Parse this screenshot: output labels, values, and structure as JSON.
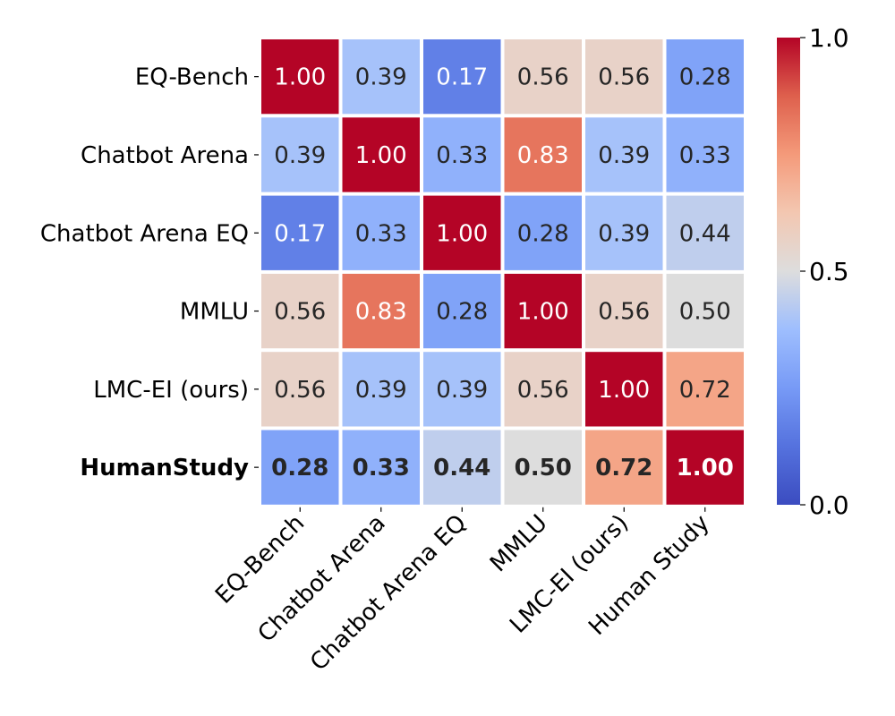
{
  "chart_data": {
    "type": "heatmap",
    "title": "",
    "xlabel": "",
    "ylabel": "",
    "row_labels": [
      "EQ-Bench",
      "Chatbot Arena",
      "Chatbot Arena EQ",
      "MMLU",
      "LMC-EI (ours)",
      "HumanStudy"
    ],
    "col_labels": [
      "EQ-Bench",
      "Chatbot Arena",
      "Chatbot Arena EQ",
      "MMLU",
      "LMC-EI (ours)",
      "Human Study"
    ],
    "values": [
      [
        1.0,
        0.39,
        0.17,
        0.56,
        0.56,
        0.28
      ],
      [
        0.39,
        1.0,
        0.33,
        0.83,
        0.39,
        0.33
      ],
      [
        0.17,
        0.33,
        1.0,
        0.28,
        0.39,
        0.44
      ],
      [
        0.56,
        0.83,
        0.28,
        1.0,
        0.56,
        0.5
      ],
      [
        0.56,
        0.39,
        0.39,
        0.56,
        1.0,
        0.72
      ],
      [
        0.28,
        0.33,
        0.44,
        0.5,
        0.72,
        1.0
      ]
    ],
    "bold_row": 5,
    "colormap": "coolwarm",
    "vmin": 0.0,
    "vmax": 1.0,
    "colorbar_ticks": [
      "0.0",
      "0.5",
      "1.0"
    ],
    "colorbar_tick_values": [
      0.0,
      0.5,
      1.0
    ],
    "annotation_format": "0.00",
    "grid": false,
    "legend": "colorbar-right",
    "colors": {
      "low": "#3b4cc0",
      "mid": "#dddddd",
      "high": "#b40426",
      "cell_border": "#ffffff",
      "dark_text": "#262626",
      "light_text": "#ffffff"
    }
  }
}
